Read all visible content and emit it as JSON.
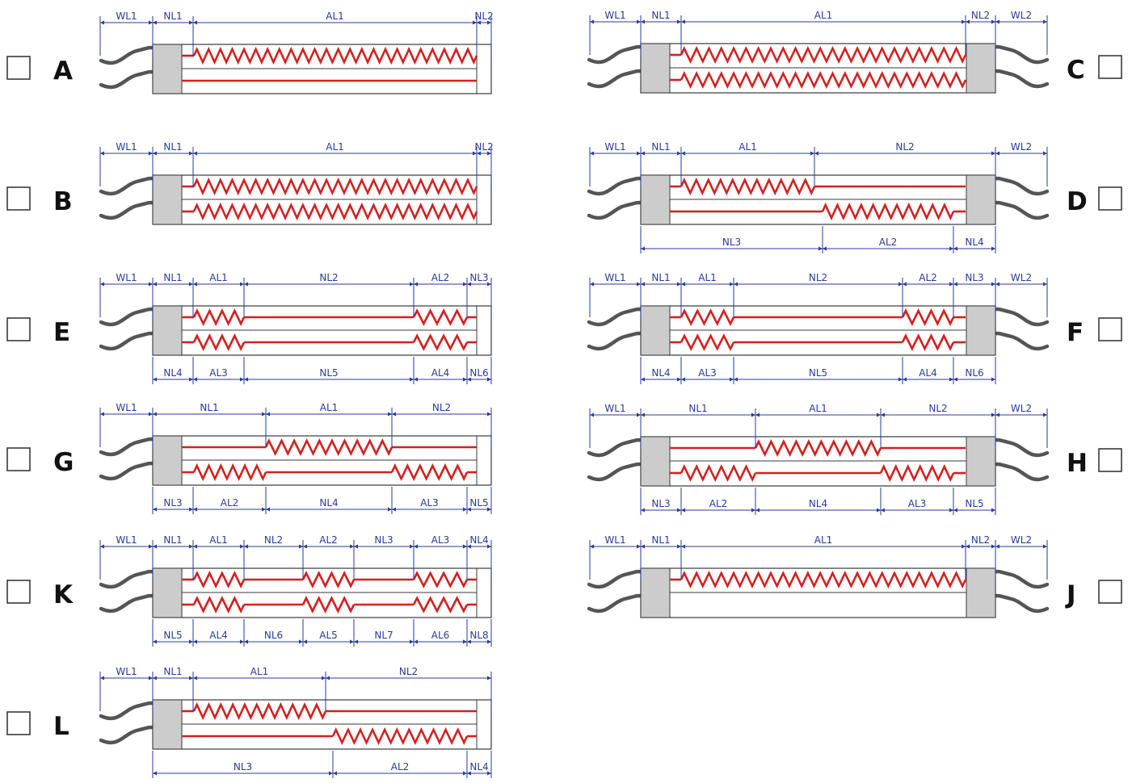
{
  "colors": {
    "wire": "#555555",
    "cap": "#cccccc",
    "heater": "#d42020",
    "dim": "#2a3a9c",
    "outline": "#3a3a3a"
  },
  "options": [
    {
      "letter": "A",
      "checked": false,
      "top_labels": [
        "WL1",
        "NL1",
        "AL1",
        "NL2"
      ],
      "bottom_labels": []
    },
    {
      "letter": "B",
      "checked": false,
      "top_labels": [
        "WL1",
        "NL1",
        "AL1",
        "NL2"
      ],
      "bottom_labels": []
    },
    {
      "letter": "E",
      "checked": false,
      "top_labels": [
        "WL1",
        "NL1",
        "AL1",
        "NL2",
        "AL2",
        "NL3"
      ],
      "bottom_labels": [
        "NL4",
        "AL3",
        "NL5",
        "AL4",
        "NL6"
      ]
    },
    {
      "letter": "G",
      "checked": false,
      "top_labels": [
        "WL1",
        "NL1",
        "AL1",
        "NL2"
      ],
      "bottom_labels": [
        "NL3",
        "AL2",
        "NL4",
        "AL3",
        "NL5"
      ]
    },
    {
      "letter": "K",
      "checked": false,
      "top_labels": [
        "WL1",
        "NL1",
        "AL1",
        "NL2",
        "AL2",
        "NL3",
        "AL3",
        "NL4"
      ],
      "bottom_labels": [
        "NL5",
        "AL4",
        "NL6",
        "AL5",
        "NL7",
        "AL6",
        "NL8"
      ]
    },
    {
      "letter": "L",
      "checked": false,
      "top_labels": [
        "WL1",
        "NL1",
        "AL1",
        "NL2"
      ],
      "bottom_labels": [
        "NL3",
        "AL2",
        "NL4"
      ]
    },
    {
      "letter": "C",
      "checked": false,
      "top_labels": [
        "WL1",
        "NL1",
        "AL1",
        "NL2",
        "WL2"
      ],
      "bottom_labels": []
    },
    {
      "letter": "D",
      "checked": false,
      "top_labels": [
        "WL1",
        "NL1",
        "AL1",
        "NL2",
        "WL2"
      ],
      "bottom_labels": [
        "NL3",
        "AL2",
        "NL4"
      ]
    },
    {
      "letter": "F",
      "checked": false,
      "top_labels": [
        "WL1",
        "NL1",
        "AL1",
        "NL2",
        "AL2",
        "NL3",
        "WL2"
      ],
      "bottom_labels": [
        "NL4",
        "AL3",
        "NL5",
        "AL4",
        "NL6"
      ]
    },
    {
      "letter": "H",
      "checked": false,
      "top_labels": [
        "WL1",
        "NL1",
        "AL1",
        "NL2",
        "WL2"
      ],
      "bottom_labels": [
        "NL3",
        "AL2",
        "NL4",
        "AL3",
        "NL5"
      ]
    },
    {
      "letter": "J",
      "checked": false,
      "top_labels": [
        "WL1",
        "NL1",
        "AL1",
        "NL2",
        "WL2"
      ],
      "bottom_labels": []
    }
  ]
}
